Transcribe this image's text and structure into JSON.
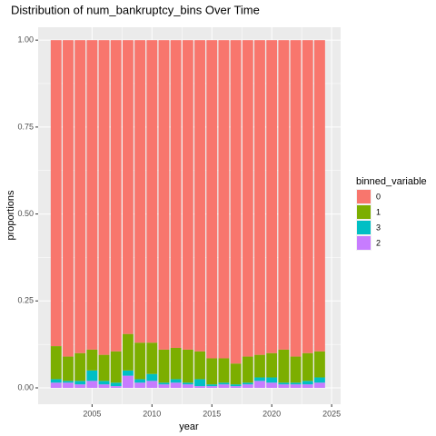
{
  "chart_data": {
    "type": "bar",
    "stacked": true,
    "title": "Distribution of num_bankruptcy_bins Over Time",
    "x_label": "year",
    "y_label": "proportions",
    "legend_title": "binned_variable",
    "x": [
      2002,
      2003,
      2004,
      2005,
      2006,
      2007,
      2008,
      2009,
      2010,
      2011,
      2012,
      2013,
      2014,
      2015,
      2016,
      2017,
      2018,
      2019,
      2020,
      2021,
      2022,
      2023,
      2024
    ],
    "series": [
      {
        "name": "0",
        "color": "#F8766D",
        "values": [
          0.88,
          0.91,
          0.9,
          0.89,
          0.905,
          0.895,
          0.845,
          0.87,
          0.87,
          0.89,
          0.885,
          0.89,
          0.895,
          0.915,
          0.915,
          0.93,
          0.91,
          0.905,
          0.9,
          0.89,
          0.91,
          0.9,
          0.895
        ]
      },
      {
        "name": "1",
        "color": "#7CAE00",
        "values": [
          0.095,
          0.07,
          0.08,
          0.06,
          0.075,
          0.09,
          0.105,
          0.105,
          0.09,
          0.095,
          0.09,
          0.095,
          0.08,
          0.075,
          0.07,
          0.06,
          0.075,
          0.065,
          0.07,
          0.095,
          0.075,
          0.08,
          0.075
        ]
      },
      {
        "name": "3",
        "color": "#00BFC4",
        "values": [
          0.01,
          0.005,
          0.01,
          0.03,
          0.01,
          0.01,
          0.015,
          0.01,
          0.02,
          0.005,
          0.01,
          0.005,
          0.02,
          0.005,
          0.005,
          0.005,
          0.005,
          0.01,
          0.015,
          0.005,
          0.005,
          0.01,
          0.015
        ]
      },
      {
        "name": "2",
        "color": "#C77CFF",
        "values": [
          0.015,
          0.015,
          0.01,
          0.02,
          0.01,
          0.005,
          0.035,
          0.015,
          0.02,
          0.01,
          0.015,
          0.01,
          0.005,
          0.005,
          0.01,
          0.005,
          0.01,
          0.02,
          0.015,
          0.01,
          0.01,
          0.01,
          0.015
        ]
      }
    ],
    "xlim": [
      2000.5,
      2025.75
    ],
    "xticks": [
      2005,
      2010,
      2015,
      2020,
      2025
    ],
    "ylim": [
      -0.047,
      1.037
    ],
    "yticks": [
      {
        "value": 0,
        "label": "0.00"
      },
      {
        "value": 0.25,
        "label": "0.25"
      },
      {
        "value": 0.5,
        "label": "0.50"
      },
      {
        "value": 0.75,
        "label": "0.75"
      },
      {
        "value": 1,
        "label": "1.00"
      }
    ],
    "grid": true,
    "legend": "right"
  }
}
